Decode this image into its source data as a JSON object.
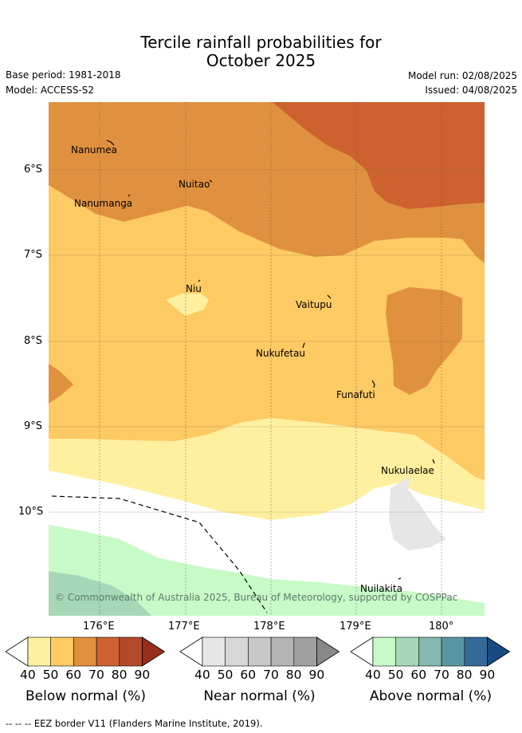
{
  "title_line1": "Tercile rainfall probabilities for",
  "title_line2": "October 2025",
  "base_period": "Base period: 1981-2018",
  "model": "Model: ACCESS-S2",
  "model_run": "Model run: 02/08/2025",
  "issued": "Issued: 04/08/2025",
  "copyright": "© Commonwealth of Australia 2025, Bureau of Meteorology, supported by COSPPac",
  "lat_ticks": [
    "6°S",
    "7°S",
    "8°S",
    "9°S",
    "10°S"
  ],
  "lon_ticks": [
    "176°E",
    "177°E",
    "178°E",
    "179°E",
    "180°"
  ],
  "places": [
    "Nanumea",
    "Nuitao",
    "Nanumanga",
    "Niu",
    "Vaitupu",
    "Nukufetau",
    "Funafuti",
    "Nukulaelae",
    "Nuilakita"
  ],
  "colorbars": [
    {
      "title": "Below normal (%)",
      "labels": [
        "40",
        "50",
        "60",
        "70",
        "80",
        "90"
      ],
      "colors": [
        "#fff0a0",
        "#fdca64",
        "#e0913f",
        "#cd6230",
        "#b24a28",
        "#992e1b"
      ]
    },
    {
      "title": "Near normal (%)",
      "labels": [
        "40",
        "50",
        "60",
        "70",
        "80",
        "90"
      ],
      "colors": [
        "#e6e6e6",
        "#d7d7d7",
        "#c8c8c8",
        "#b4b4b4",
        "#a0a0a0",
        "#888888"
      ]
    },
    {
      "title": "Above normal (%)",
      "labels": [
        "40",
        "50",
        "60",
        "70",
        "80",
        "90"
      ],
      "colors": [
        "#c8fac8",
        "#a6d8b8",
        "#84b8b0",
        "#5a96a2",
        "#346a9a",
        "#174a80"
      ]
    }
  ],
  "eez_legend": "-- -- -- EEZ border V11 (Flanders Marine Institute, 2019)."
}
